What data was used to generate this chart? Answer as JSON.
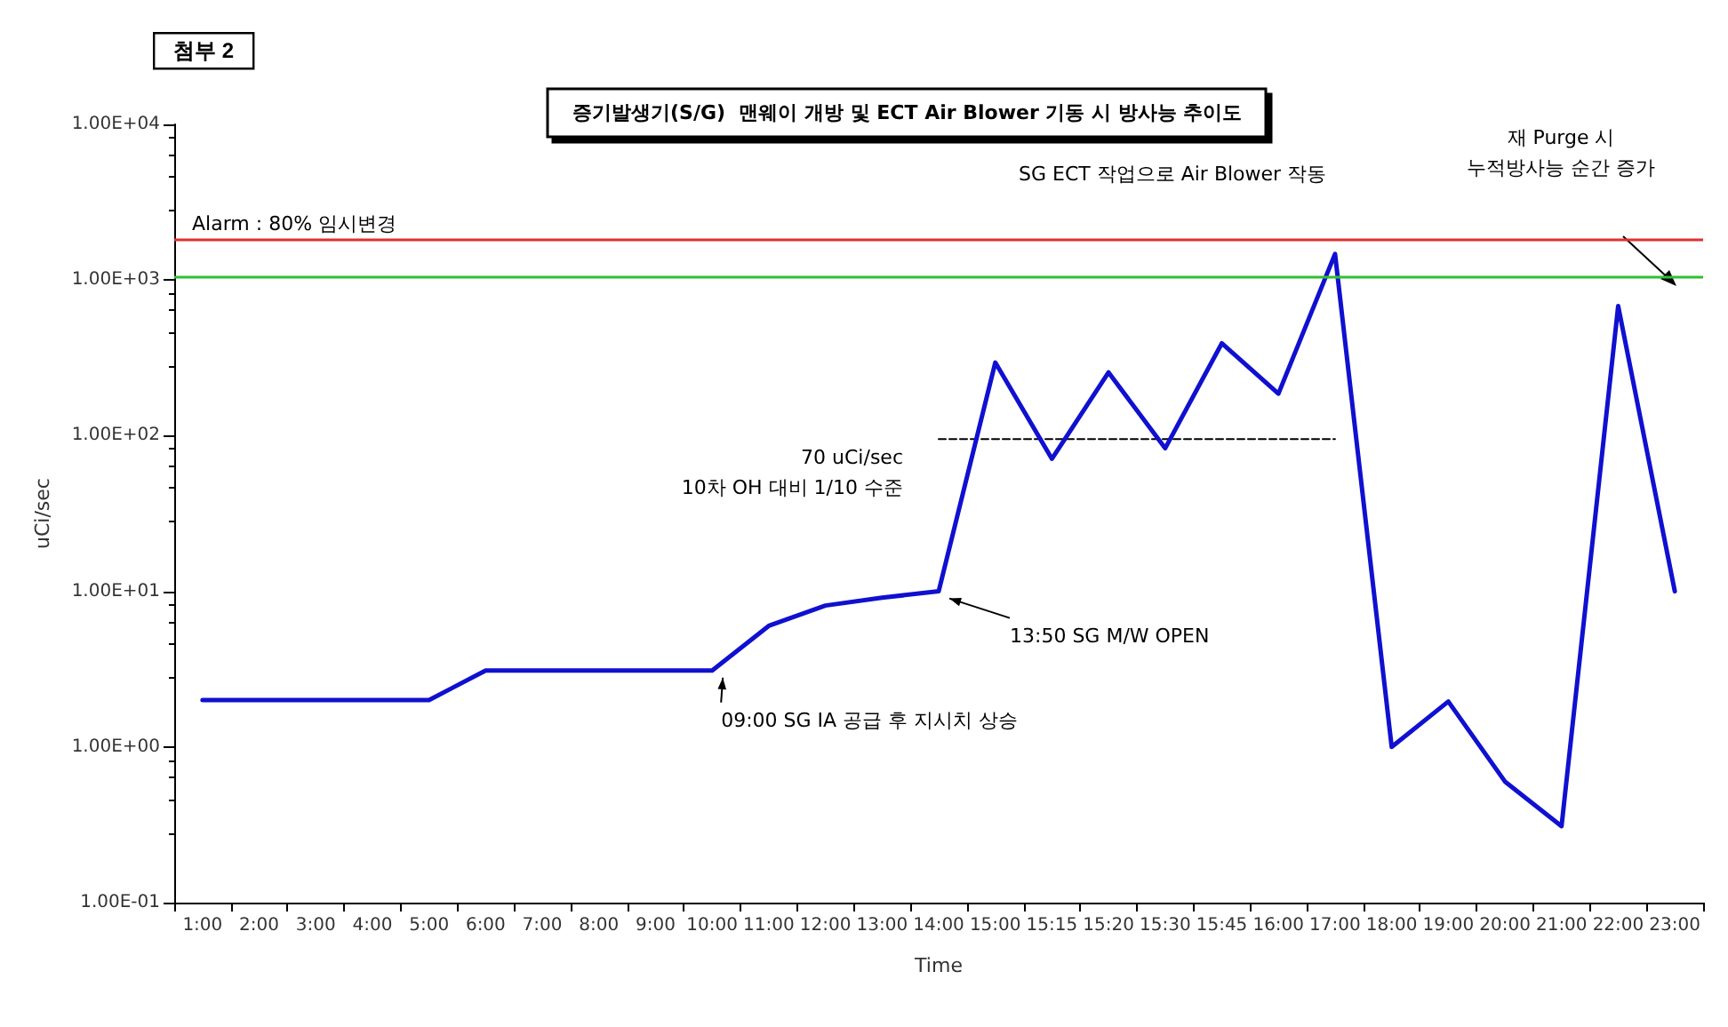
{
  "chart_data": {
    "type": "line",
    "title": "증기발생기(S/G)  맨웨이 개방 및 ECT Air Blower 기동 시 방사능 추이도",
    "xlabel": "Time",
    "ylabel": "uCi/sec",
    "categories": [
      "1:00",
      "2:00",
      "3:00",
      "4:00",
      "5:00",
      "6:00",
      "7:00",
      "8:00",
      "9:00",
      "10:00",
      "11:00",
      "12:00",
      "13:00",
      "14:00",
      "15:00",
      "15:15",
      "15:20",
      "15:30",
      "15:45",
      "16:00",
      "17:00",
      "18:00",
      "19:00",
      "20:00",
      "21:00",
      "22:00",
      "23:00"
    ],
    "series": [
      {
        "color": "#1010d0",
        "values": [
          2,
          2,
          2,
          2,
          2,
          3.1,
          3.1,
          3.1,
          3.1,
          3.1,
          6,
          8.1,
          9.1,
          10,
          295,
          71,
          255,
          83,
          392,
          186,
          1470,
          1,
          1.96,
          0.6,
          0.31,
          680,
          10
        ]
      },
      {
        "color": "#000000",
        "line_style": "dashed",
        "values": [
          null,
          null,
          null,
          null,
          null,
          null,
          null,
          null,
          null,
          null,
          null,
          null,
          null,
          95,
          95,
          95,
          95,
          95,
          95,
          95,
          95,
          null,
          null,
          null,
          null,
          null,
          null
        ]
      }
    ],
    "log": "y",
    "ylim": [
      0.1,
      10000
    ],
    "yticks": [
      {
        "value": 0.1,
        "label": "1.00E-01"
      },
      {
        "value": 1,
        "label": "1.00E+00"
      },
      {
        "value": 10,
        "label": "1.00E+01"
      },
      {
        "value": 100,
        "label": "1.00E+02"
      },
      {
        "value": 1000,
        "label": "1.00E+03"
      },
      {
        "value": 10000,
        "label": "1.00E+04"
      }
    ],
    "ref_lines": [
      {
        "axis": "y",
        "value": 1800,
        "color": "#e03030"
      },
      {
        "axis": "y",
        "value": 1050,
        "color": "#30c030"
      }
    ],
    "annotations": [
      "첨부 2",
      "SG ECT 작업으로 Air Blower 작동",
      "70 uCi/sec\n10차 OH 대비 1/10 수준",
      "재 Purge 시\n누적방사능 순간 증가",
      {
        "text": "13:50 SG M/W OPEN",
        "x": "14:00",
        "y": 10
      },
      {
        "text": "09:00 SG IA 공급 후 지시치 상승",
        "x": "10:00",
        "y": 3.1
      },
      "Alarm : 80% 임시변경"
    ],
    "grid": false,
    "marker": "none",
    "line_style": "solid"
  }
}
